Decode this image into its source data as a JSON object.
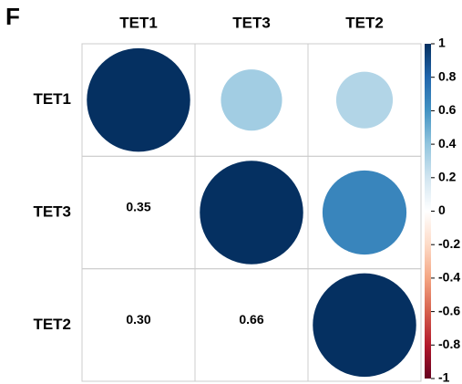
{
  "chart_data": {
    "type": "correlation",
    "panel_label": "F",
    "categories": [
      "TET1",
      "TET3",
      "TET2"
    ],
    "values": [
      [
        1,
        0.35,
        0.3
      ],
      [
        0.35,
        1,
        0.66
      ],
      [
        0.3,
        0.66,
        1
      ]
    ],
    "value_labels": [
      [
        null,
        null,
        null
      ],
      [
        "0.35",
        null,
        null
      ],
      [
        "0.30",
        "0.66",
        null
      ]
    ],
    "colorscale": [
      "#67001F",
      "#B2182B",
      "#D6604D",
      "#F4A582",
      "#FDDBC7",
      "#FFFFFF",
      "#D1E5F0",
      "#92C5DE",
      "#4393C3",
      "#2166AC",
      "#053061"
    ],
    "clim": [
      -1,
      1
    ],
    "cticks": [
      1,
      0.8,
      0.6,
      0.4,
      0.2,
      0,
      -0.2,
      -0.4,
      -0.6,
      -0.8,
      -1
    ]
  }
}
